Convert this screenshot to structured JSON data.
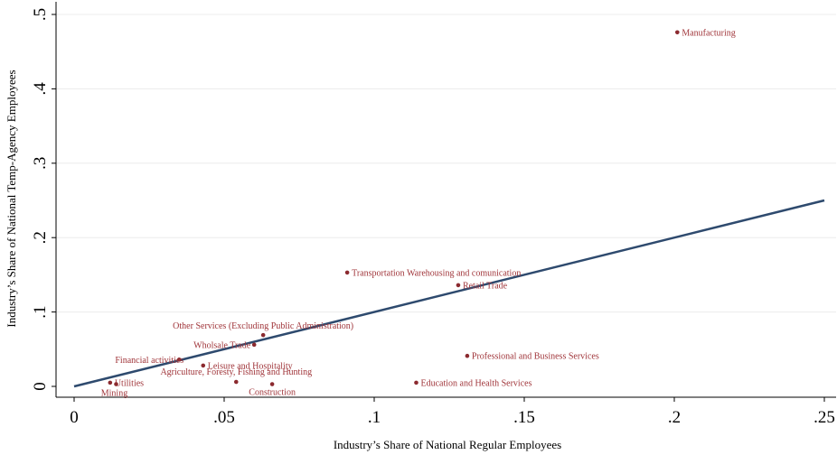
{
  "chart_data": {
    "type": "scatter",
    "title": "",
    "xlabel": "Industry’s Share of National Regular Employees",
    "ylabel": "Industry’s Share of National Temp-Agency Employees",
    "xlim": [
      0,
      0.25
    ],
    "ylim": [
      0,
      0.5
    ],
    "x_ticks": [
      {
        "value": 0,
        "label": "0"
      },
      {
        "value": 0.05,
        "label": ".05"
      },
      {
        "value": 0.1,
        "label": ".1"
      },
      {
        "value": 0.15,
        "label": ".15"
      },
      {
        "value": 0.2,
        "label": ".2"
      },
      {
        "value": 0.25,
        "label": ".25"
      }
    ],
    "y_ticks": [
      {
        "value": 0,
        "label": "0"
      },
      {
        "value": 0.1,
        "label": ".1"
      },
      {
        "value": 0.2,
        "label": ".2"
      },
      {
        "value": 0.3,
        "label": ".3"
      },
      {
        "value": 0.4,
        "label": ".4"
      },
      {
        "value": 0.5,
        "label": ".5"
      }
    ],
    "grid": "horizontal",
    "points": [
      {
        "label": "Manufacturing",
        "x": 0.201,
        "y": 0.476,
        "label_pos": "right"
      },
      {
        "label": "Transportation Warehousing and comunication",
        "x": 0.091,
        "y": 0.153,
        "label_pos": "right"
      },
      {
        "label": "Retail Trade",
        "x": 0.128,
        "y": 0.136,
        "label_pos": "right"
      },
      {
        "label": "Other Services (Excluding Public Administration)",
        "x": 0.063,
        "y": 0.069,
        "label_pos": "above"
      },
      {
        "label": "Wholsale Trade",
        "x": 0.06,
        "y": 0.056,
        "label_pos": "left"
      },
      {
        "label": "Professional and Business Services",
        "x": 0.131,
        "y": 0.041,
        "label_pos": "right"
      },
      {
        "label": "Financial activities",
        "x": 0.035,
        "y": 0.036,
        "label_pos": "left-above"
      },
      {
        "label": "Leisure and Hospitality",
        "x": 0.043,
        "y": 0.028,
        "label_pos": "right"
      },
      {
        "label": "Agriculture, Foresty, Fishing and Hunting",
        "x": 0.054,
        "y": 0.006,
        "label_pos": "above-center"
      },
      {
        "label": "Construction",
        "x": 0.066,
        "y": 0.003,
        "label_pos": "below"
      },
      {
        "label": "Education and Health Services",
        "x": 0.114,
        "y": 0.005,
        "label_pos": "right"
      },
      {
        "label": "Utilities",
        "x": 0.012,
        "y": 0.005,
        "label_pos": "right"
      },
      {
        "label": "Mining",
        "x": 0.014,
        "y": 0.003,
        "label_pos": "below-left"
      }
    ],
    "fit_line": {
      "x": [
        0,
        0.25
      ],
      "y": [
        0,
        0.25
      ]
    },
    "colors": {
      "points": "#8b2a2f",
      "labels": "#a0353a",
      "fit_line": "#2e4a6e",
      "grid": "#ececec",
      "axis": "#000000"
    }
  }
}
